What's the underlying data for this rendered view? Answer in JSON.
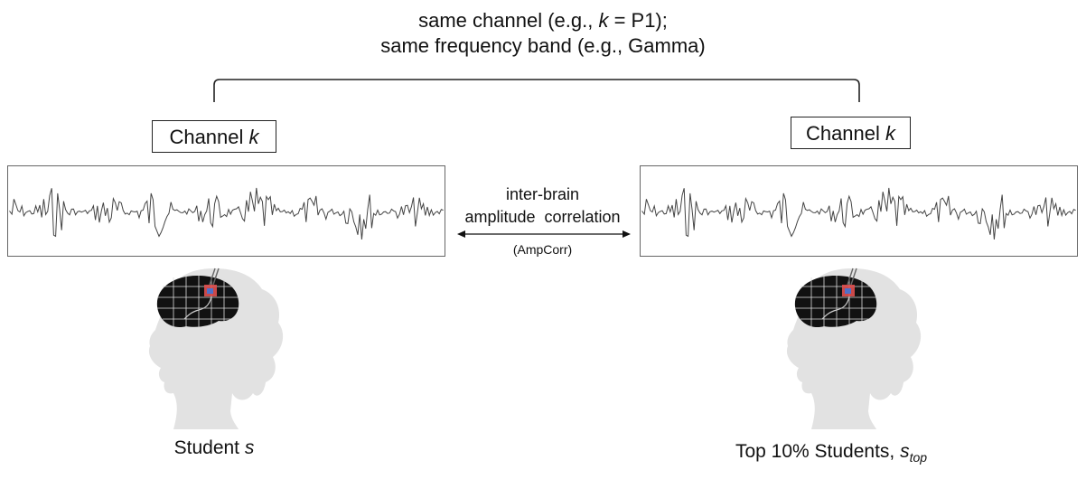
{
  "header": {
    "line1_prefix": "same channel (e.g., ",
    "line1_var": "k",
    "line1_suffix": " = P1);",
    "line2": "same frequency band (e.g., Gamma)"
  },
  "left": {
    "channel_label": "Channel ",
    "channel_var": "k",
    "caption_prefix": "Student ",
    "caption_var": "s"
  },
  "right": {
    "channel_label": "Channel ",
    "channel_var": "k",
    "caption_prefix": "Top 10% Students, ",
    "caption_var": "s",
    "caption_sub": "top"
  },
  "middle": {
    "line1": "inter-brain",
    "line2": "amplitude  correlation",
    "line3": "(AmpCorr)"
  },
  "colors": {
    "line": "#222222",
    "signal": "#444444",
    "head": "#e2e2e2",
    "brain": "#111111",
    "electrode_red": "#e05050",
    "electrode_blue": "#5070c8"
  }
}
